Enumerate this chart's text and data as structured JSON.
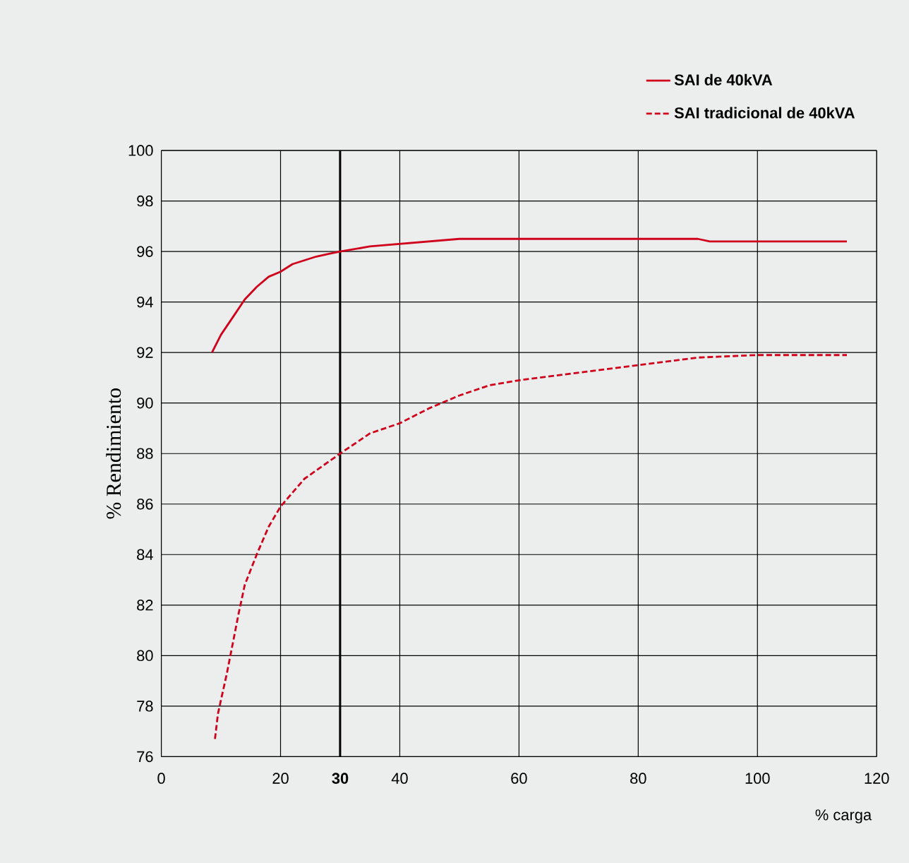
{
  "chart_data": {
    "type": "line",
    "xlabel": "% carga",
    "ylabel": "% Rendimiento",
    "xlim": [
      0,
      120
    ],
    "ylim": [
      76,
      100
    ],
    "xticks": [
      0,
      20,
      {
        "value": 30,
        "label": "**30**"
      },
      40,
      60,
      80,
      100,
      120
    ],
    "yticks": [
      76,
      78,
      80,
      82,
      84,
      86,
      88,
      90,
      92,
      94,
      96,
      98,
      100
    ],
    "grid": true,
    "legend": "top right",
    "ref_lines": [
      {
        "axis": "x",
        "value": 30,
        "color": "#000000"
      }
    ],
    "series": [
      {
        "name": "SAI de 40kVA",
        "color": "#d0021b",
        "line_style": "solid",
        "x": [
          8.5,
          10,
          12,
          14,
          16,
          18,
          20,
          22,
          26,
          28,
          30,
          35,
          40,
          45,
          50,
          90,
          92,
          115
        ],
        "values": [
          92,
          92.7,
          93.4,
          94.1,
          94.6,
          95,
          95.2,
          95.5,
          95.8,
          95.9,
          96,
          96.2,
          96.3,
          96.4,
          96.5,
          96.5,
          96.4,
          96.4
        ]
      },
      {
        "name": "SAI tradicional de 40kVA",
        "color": "#d0021b",
        "line_style": "dashed",
        "x": [
          9,
          9.5,
          11,
          12,
          13,
          14,
          16,
          18,
          20,
          24,
          27,
          30,
          35,
          40,
          45,
          50,
          55,
          60,
          70,
          80,
          90,
          100,
          115
        ],
        "values": [
          76.7,
          77.7,
          79.3,
          80.5,
          81.7,
          82.8,
          84,
          85.1,
          85.9,
          87,
          87.5,
          88,
          88.8,
          89.2,
          89.8,
          90.3,
          90.7,
          90.9,
          91.2,
          91.5,
          91.8,
          91.9,
          91.9
        ]
      }
    ]
  }
}
